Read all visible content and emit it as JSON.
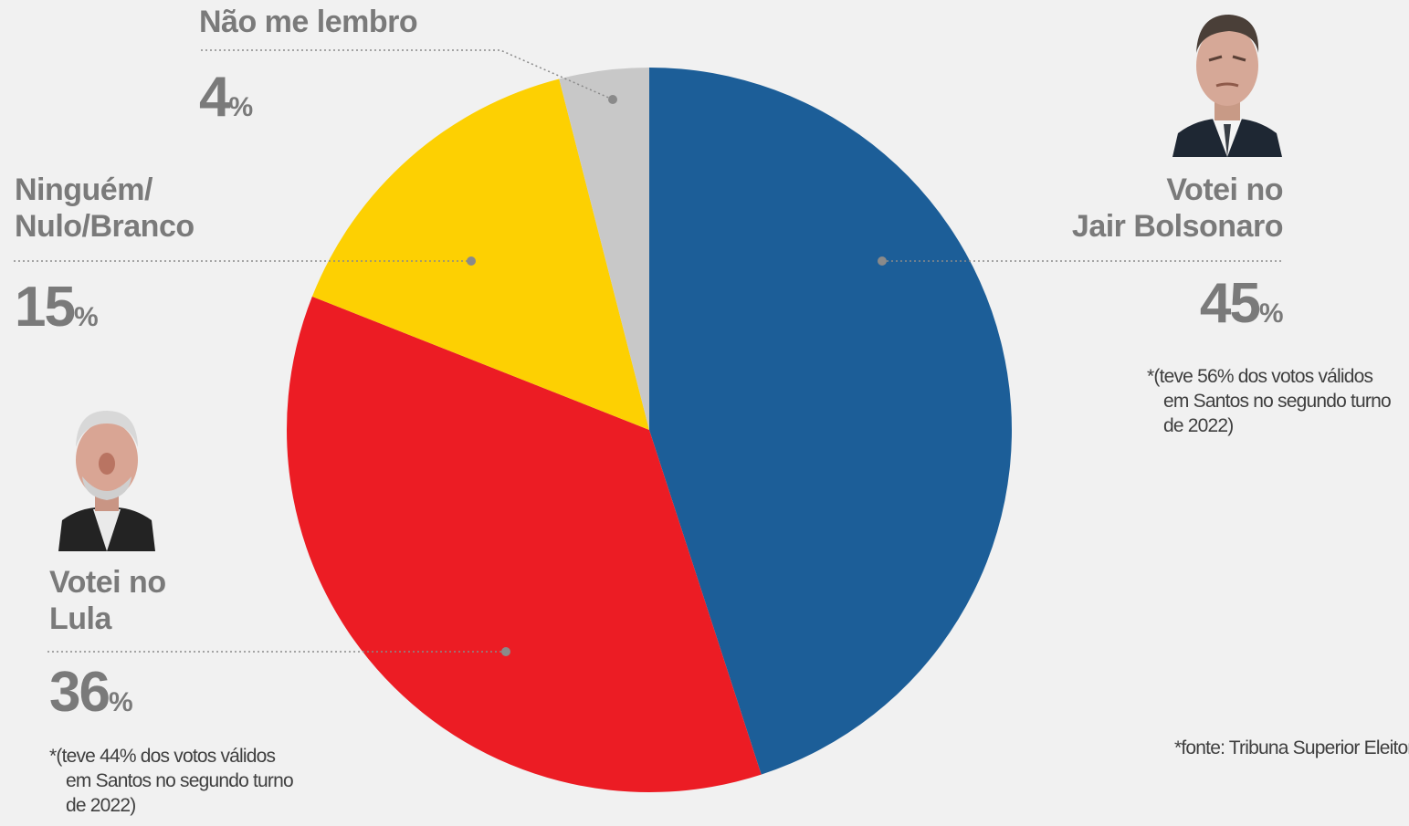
{
  "chart_data": {
    "type": "pie",
    "slices": [
      {
        "label": "Votei no Jair Bolsonaro",
        "value": 45,
        "color": "#1c5e98"
      },
      {
        "label": "Votei no Lula",
        "value": 36,
        "color": "#ec1c24"
      },
      {
        "label": "Ninguém/ Nulo/Branco",
        "value": 15,
        "color": "#fdd002"
      },
      {
        "label": "Não me lembro",
        "value": 4,
        "color": "#c8c8c8"
      }
    ]
  },
  "labels": {
    "nao_lembro": {
      "name": "Não me lembro",
      "value": "4",
      "unit": "%"
    },
    "ninguem": {
      "line1": "Ninguém/",
      "line2": "Nulo/Branco",
      "value": "15",
      "unit": "%"
    },
    "bolsonaro": {
      "line1": "Votei no",
      "line2": "Jair Bolsonaro",
      "value": "45",
      "unit": "%"
    },
    "lula": {
      "line1": "Votei no",
      "line2": "Lula",
      "value": "36",
      "unit": "%"
    }
  },
  "notes": {
    "bolsonaro": {
      "line1": "*(teve 56% dos votos válidos",
      "line2": "em Santos no segundo turno",
      "line3": "de 2022)"
    },
    "lula": {
      "line1": "*(teve 44% dos votos válidos",
      "line2": "em Santos no segundo turno",
      "line3": "de 2022)"
    },
    "source": "*fonte: Tribuna Superior Eleitoral"
  },
  "colors": {
    "background": "#f1f1f1",
    "label": "#7a7a7a",
    "leader": "#8a8a8a"
  }
}
